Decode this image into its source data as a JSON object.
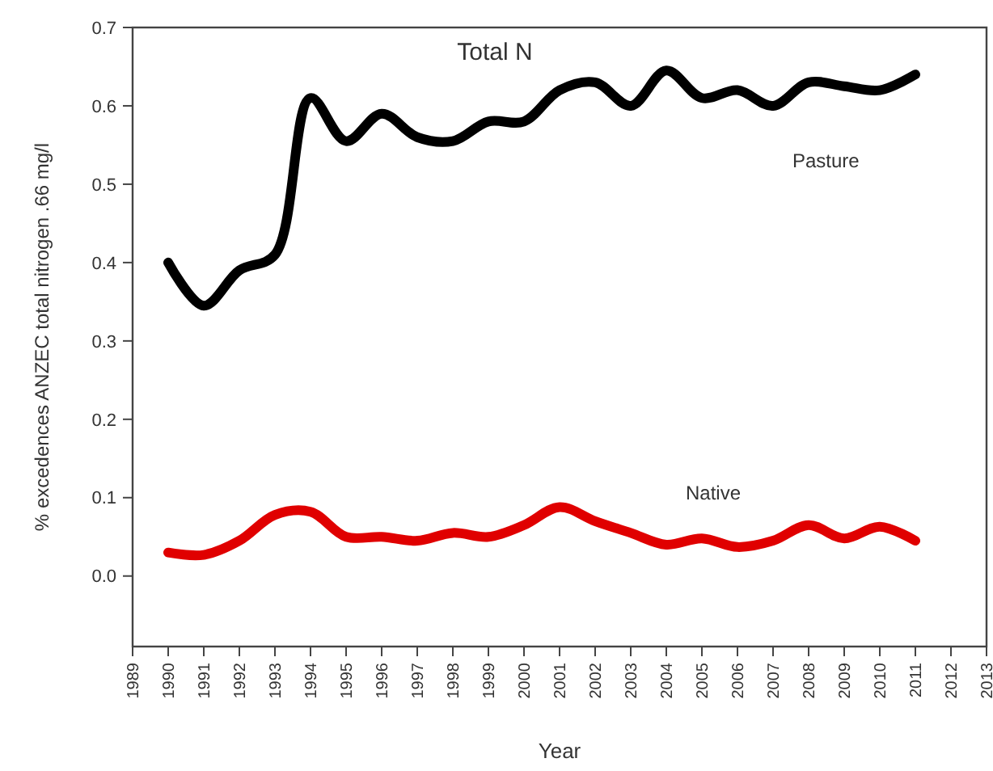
{
  "chart_data": {
    "type": "line",
    "title": "Total N",
    "xlabel": "Year",
    "ylabel": "% excedences ANZEC total nitrogen .66 mg/l",
    "x": [
      1990,
      1991,
      1992,
      1993,
      1994,
      1995,
      1996,
      1997,
      1998,
      1999,
      2000,
      2001,
      2002,
      2003,
      2004,
      2005,
      2006,
      2007,
      2008,
      2009,
      2010,
      2011
    ],
    "series": [
      {
        "name": "Pasture",
        "color": "#000000",
        "values": [
          0.4,
          0.345,
          0.39,
          0.41,
          0.61,
          0.555,
          0.59,
          0.56,
          0.555,
          0.58,
          0.58,
          0.62,
          0.63,
          0.6,
          0.645,
          0.61,
          0.62,
          0.6,
          0.63,
          0.625,
          0.62,
          0.64
        ]
      },
      {
        "name": "Native",
        "color": "#e00000",
        "values": [
          0.03,
          0.027,
          0.045,
          0.078,
          0.082,
          0.05,
          0.05,
          0.045,
          0.055,
          0.05,
          0.065,
          0.088,
          0.07,
          0.055,
          0.04,
          0.048,
          0.037,
          0.045,
          0.065,
          0.048,
          0.063,
          0.045
        ]
      }
    ],
    "xlim": [
      1989,
      2013
    ],
    "xticks": [
      1989,
      1990,
      1991,
      1992,
      1993,
      1994,
      1995,
      1996,
      1997,
      1998,
      1999,
      2000,
      2001,
      2002,
      2003,
      2004,
      2005,
      2006,
      2007,
      2008,
      2009,
      2010,
      2011,
      2012,
      2013
    ],
    "ylim": [
      -0.09,
      0.7
    ],
    "yticks": [
      {
        "value": 0,
        "label": "0.0"
      },
      0.1,
      0.2,
      0.3,
      0.4,
      0.5,
      0.6,
      0.7
    ],
    "grid": false,
    "marker": "none",
    "line_style": "solid"
  }
}
